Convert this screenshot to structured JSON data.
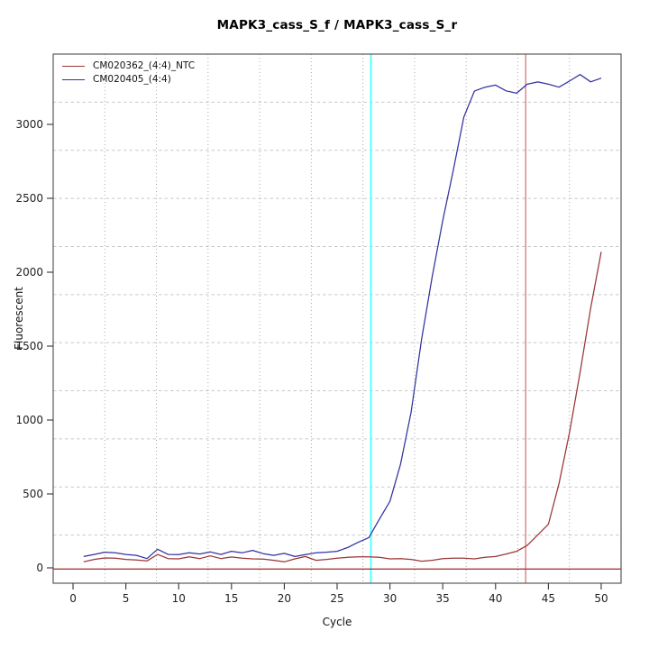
{
  "chart_data": {
    "type": "line",
    "title": "MAPK3_cass_S_f / MAPK3_cass_S_r",
    "xlabel": "Cycle",
    "ylabel": "Fluorescent",
    "x_ticks": [
      0,
      5,
      10,
      15,
      20,
      25,
      30,
      35,
      40,
      45,
      50
    ],
    "y_ticks": [
      0,
      500,
      1000,
      1500,
      2000,
      2500,
      3000
    ],
    "xlim": [
      -1.88,
      51.88
    ],
    "ylim": [
      -103.7,
      3475.6
    ],
    "grid": {
      "divisions": 11,
      "v_color": "#a8a8a8",
      "h_color": "#c9c9c9"
    },
    "box_color": "#5a5a5a",
    "tick_color": "#333333",
    "cycles": [
      1,
      2,
      3,
      4,
      5,
      6,
      7,
      8,
      9,
      10,
      11,
      12,
      13,
      14,
      15,
      16,
      17,
      18,
      19,
      20,
      21,
      22,
      23,
      24,
      25,
      26,
      27,
      28,
      29,
      30,
      31,
      32,
      33,
      34,
      35,
      36,
      37,
      38,
      39,
      40,
      41,
      42,
      43,
      44,
      45,
      46,
      47,
      48,
      49,
      50
    ],
    "series": [
      {
        "name": "CM020362_(4:4)_NTC",
        "color": "#9a3535",
        "values": [
          41,
          57,
          67,
          65,
          57,
          53,
          47,
          91,
          63,
          61,
          75,
          63,
          81,
          63,
          74,
          65,
          61,
          59,
          51,
          41,
          61,
          77,
          51,
          57,
          65,
          71,
          75,
          75,
          71,
          61,
          63,
          57,
          45,
          51,
          63,
          65,
          65,
          61,
          71,
          77,
          94,
          112,
          152,
          224,
          295,
          569,
          915,
          1321,
          1758,
          2138
        ]
      },
      {
        "name": "CM020405_(4:4)",
        "color": "#32329e",
        "values": [
          77,
          91,
          106,
          102,
          91,
          85,
          63,
          126,
          91,
          90,
          102,
          94,
          108,
          91,
          112,
          102,
          118,
          96,
          85,
          98,
          77,
          90,
          102,
          106,
          112,
          138,
          173,
          205,
          330,
          450,
          700,
          1050,
          1550,
          1970,
          2350,
          2690,
          3050,
          3225,
          3252,
          3266,
          3227,
          3211,
          3272,
          3287,
          3272,
          3252,
          3293,
          3337,
          3288,
          3313
        ]
      }
    ],
    "markers": {
      "threshold_hline": {
        "y": -8,
        "color": "#ad3a3a"
      },
      "ct_vlines": [
        {
          "x": 28.2,
          "color": "#55ffff",
          "width": 2
        },
        {
          "x": 42.85,
          "color": "#d47878",
          "width": 1.3
        }
      ]
    }
  }
}
